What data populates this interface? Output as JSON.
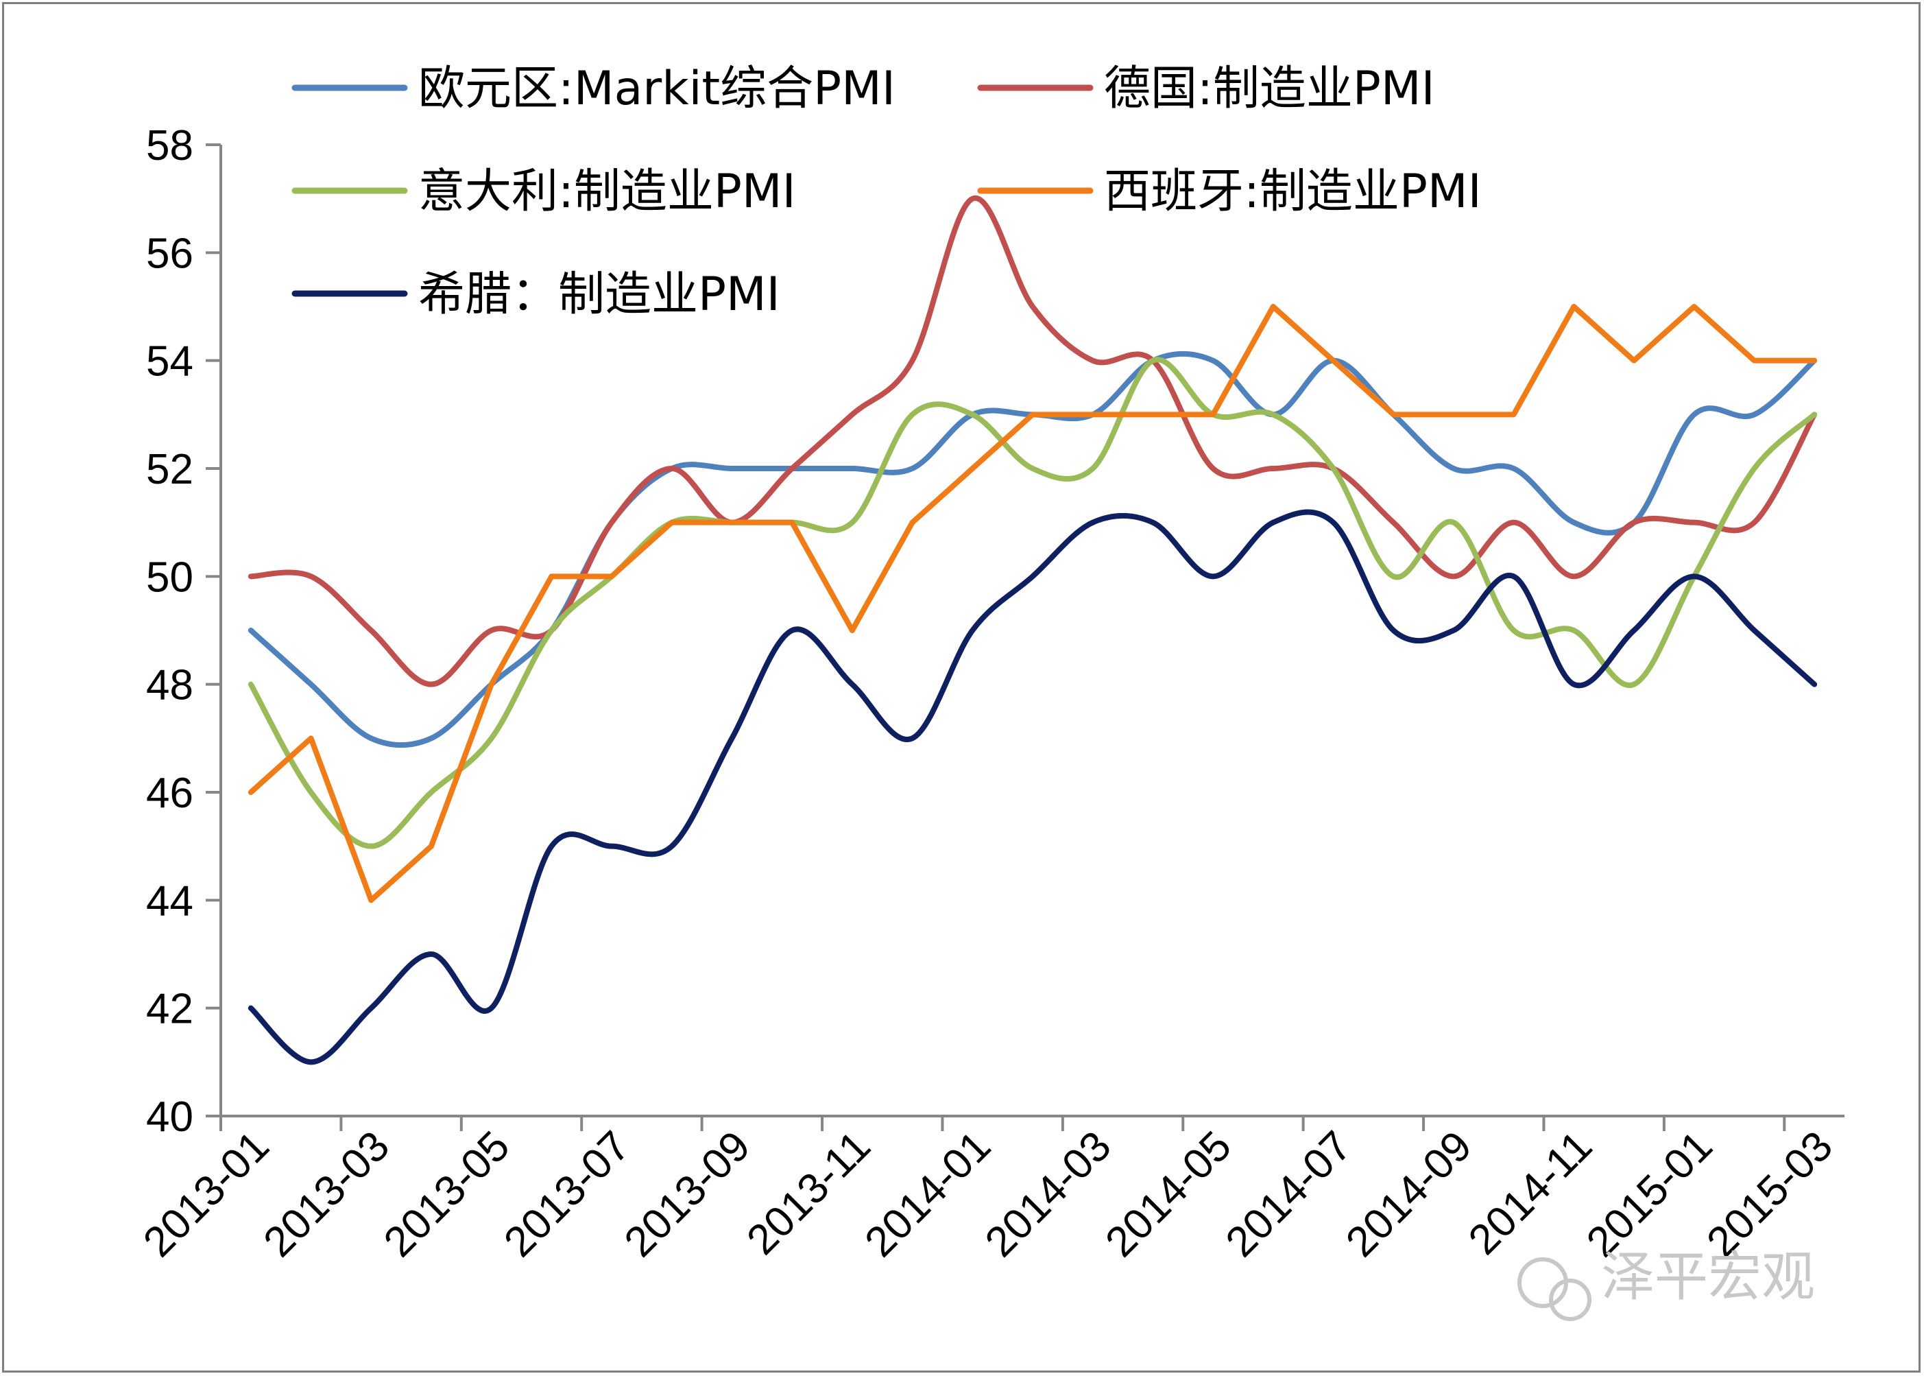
{
  "chart_data": {
    "type": "line",
    "title": "",
    "xlabel": "",
    "ylabel": "",
    "ylim": [
      40,
      58
    ],
    "yticks": [
      40,
      42,
      44,
      46,
      48,
      50,
      52,
      54,
      56,
      58
    ],
    "x": [
      "2013-01",
      "2013-02",
      "2013-03",
      "2013-04",
      "2013-05",
      "2013-06",
      "2013-07",
      "2013-08",
      "2013-09",
      "2013-10",
      "2013-11",
      "2013-12",
      "2014-01",
      "2014-02",
      "2014-03",
      "2014-04",
      "2014-05",
      "2014-06",
      "2014-07",
      "2014-08",
      "2014-09",
      "2014-10",
      "2014-11",
      "2014-12",
      "2015-01",
      "2015-02",
      "2015-03"
    ],
    "xtick_labels": [
      "2013-01",
      "2013-03",
      "2013-05",
      "2013-07",
      "2013-09",
      "2013-11",
      "2014-01",
      "2014-03",
      "2014-05",
      "2014-07",
      "2014-09",
      "2014-11",
      "2015-01",
      "2015-03"
    ],
    "grid": false,
    "legend_position": "top",
    "series": [
      {
        "name": "欧元区:Markit综合PMI",
        "color": "#4f81bd",
        "values": [
          49,
          48,
          47,
          47,
          48,
          49,
          51,
          52,
          52,
          52,
          52,
          52,
          53,
          53,
          53,
          54,
          54,
          53,
          54,
          53,
          52,
          52,
          51,
          51,
          53,
          53,
          54
        ]
      },
      {
        "name": "德国:制造业PMI",
        "color": "#c0504d",
        "values": [
          50,
          50,
          49,
          48,
          49,
          49,
          51,
          52,
          51,
          52,
          53,
          54,
          57,
          55,
          54,
          54,
          52,
          52,
          52,
          51,
          50,
          51,
          50,
          51,
          51,
          51,
          53
        ]
      },
      {
        "name": "意大利:制造业PMI",
        "color": "#9bbb59",
        "values": [
          48,
          46,
          45,
          46,
          47,
          49,
          50,
          51,
          51,
          51,
          51,
          53,
          53,
          52,
          52,
          54,
          53,
          53,
          52,
          50,
          51,
          49,
          49,
          48,
          50,
          52,
          53
        ]
      },
      {
        "name": "西班牙:制造业PMI",
        "color": "#f07c18",
        "values": [
          46,
          47,
          44,
          45,
          48,
          50,
          50,
          51,
          51,
          51,
          49,
          51,
          52,
          53,
          53,
          53,
          53,
          55,
          54,
          53,
          53,
          53,
          55,
          54,
          55,
          54,
          54
        ]
      },
      {
        "name": "希腊：制造业PMI",
        "color": "#0f2061",
        "values": [
          42,
          41,
          42,
          43,
          42,
          45,
          45,
          45,
          47,
          49,
          48,
          47,
          49,
          50,
          51,
          51,
          50,
          51,
          51,
          49,
          49,
          50,
          48,
          49,
          50,
          49,
          48
        ]
      }
    ]
  },
  "watermark": {
    "text": "泽平宏观"
  }
}
